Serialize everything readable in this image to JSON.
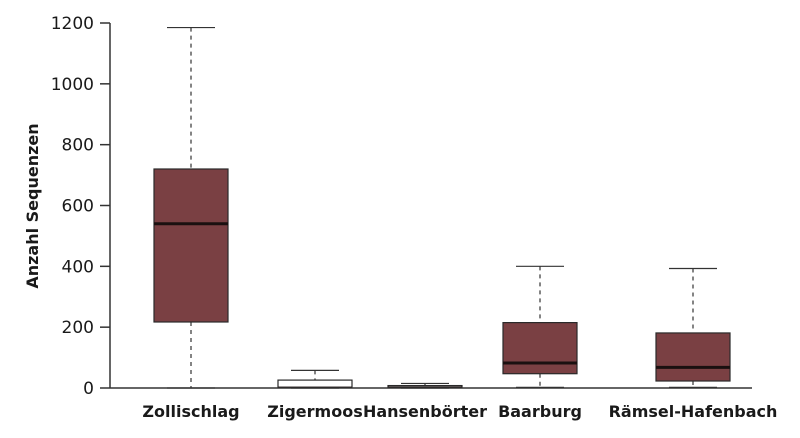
{
  "chart_data": {
    "type": "boxplot",
    "title": "",
    "xlabel": "",
    "ylabel": "Anzahl Sequenzen",
    "ylim": [
      0,
      1200
    ],
    "yticks": [
      0,
      200,
      400,
      600,
      800,
      1000,
      1200
    ],
    "grid": false,
    "colors": {
      "filled": "#7a4043",
      "empty": "#ffffff",
      "median": "#1a1010",
      "axis": "#333333"
    },
    "categories": [
      "Zollischlag",
      "Zigermoos",
      "Hansenbörter",
      "Baarburg",
      "Rämsel-Hafenbach"
    ],
    "boxes": [
      {
        "min": 0,
        "q1": 217,
        "median": 540,
        "q3": 720,
        "max": 1185,
        "filled": true
      },
      {
        "min": 0,
        "q1": 2,
        "median": 2,
        "q3": 26,
        "max": 58,
        "filled": false
      },
      {
        "min": 0,
        "q1": 1,
        "median": 3,
        "q3": 8,
        "max": 15,
        "filled": false
      },
      {
        "min": 2,
        "q1": 47,
        "median": 82,
        "q3": 215,
        "max": 400,
        "filled": true
      },
      {
        "min": 2,
        "q1": 23,
        "median": 68,
        "q3": 181,
        "max": 393,
        "filled": true
      }
    ]
  }
}
